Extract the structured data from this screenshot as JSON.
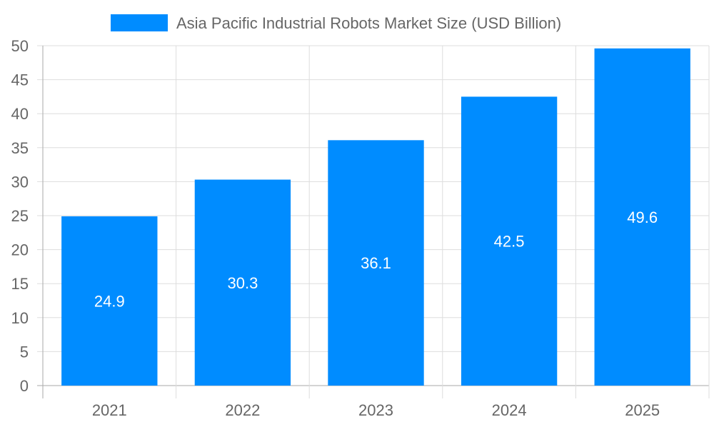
{
  "chart_data": {
    "type": "bar",
    "categories": [
      "2021",
      "2022",
      "2023",
      "2024",
      "2025"
    ],
    "series": [
      {
        "name": "Asia Pacific Industrial Robots Market Size (USD Billion)",
        "values": [
          24.9,
          30.3,
          36.1,
          42.5,
          49.6
        ]
      }
    ],
    "data_labels": [
      "24.9",
      "30.3",
      "36.1",
      "42.5",
      "49.6"
    ],
    "ylim": [
      0,
      50
    ],
    "yticks": [
      "0",
      "5",
      "10",
      "15",
      "20",
      "25",
      "30",
      "35",
      "40",
      "45",
      "50"
    ],
    "grid": true,
    "legend": "top-center",
    "colors": {
      "bar": "#008cff",
      "grid": "#dddddd",
      "axis": "#aaaaaa",
      "text": "#666666",
      "label": "#ffffff"
    }
  }
}
